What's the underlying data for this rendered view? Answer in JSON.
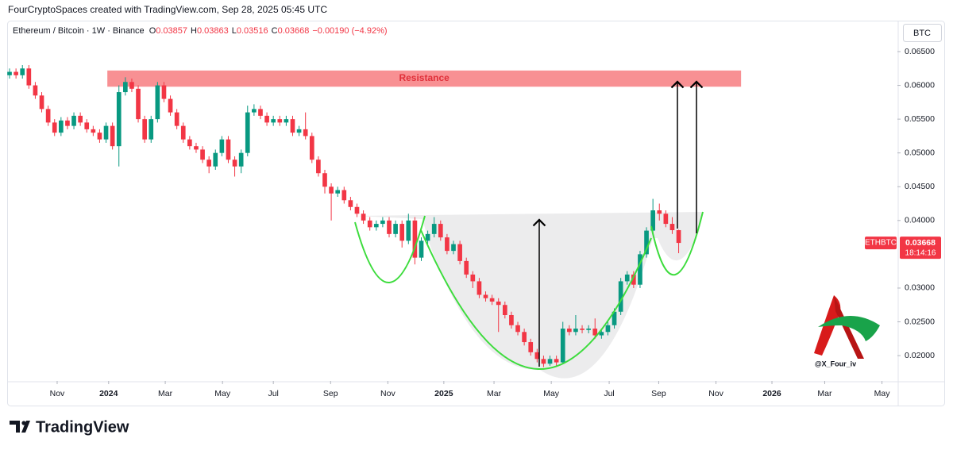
{
  "header": {
    "credit": "FourCryptoSpaces created with TradingView.com, Sep 28, 2025 05:45 UTC",
    "symbol": "Ethereum / Bitcoin · 1W · Binance",
    "ohlc_labels": [
      "O",
      "H",
      "L",
      "C"
    ],
    "change": "−0.00190 (−4.92%)",
    "currency": "BTC",
    "symbol_tag": "ETHBTC",
    "countdown": "18:14:16",
    "watermark": "@X_Four_iv"
  },
  "footer": {
    "brand": "TradingView"
  },
  "chart_data": {
    "type": "candlestick",
    "up_color": "#089981",
    "down_color": "#f23645",
    "grid": false,
    "open": [
      0.0615,
      0.062,
      0.0615,
      0.0625,
      0.06,
      0.0585,
      0.0565,
      0.0545,
      0.053,
      0.0548,
      0.054,
      0.0555,
      0.0545,
      0.0535,
      0.053,
      0.052,
      0.054,
      0.051,
      0.059,
      0.0605,
      0.0595,
      0.055,
      0.052,
      0.055,
      0.06,
      0.058,
      0.056,
      0.054,
      0.052,
      0.051,
      0.0505,
      0.049,
      0.048,
      0.05,
      0.052,
      0.049,
      0.048,
      0.05,
      0.056,
      0.0565,
      0.0555,
      0.0545,
      0.055,
      0.0545,
      0.055,
      0.053,
      0.0535,
      0.0525,
      0.049,
      0.047,
      0.045,
      0.044,
      0.0445,
      0.043,
      0.042,
      0.041,
      0.04,
      0.039,
      0.0395,
      0.04,
      0.038,
      0.0395,
      0.037,
      0.04,
      0.0345,
      0.037,
      0.038,
      0.0395,
      0.0375,
      0.0355,
      0.0365,
      0.034,
      0.032,
      0.031,
      0.029,
      0.0285,
      0.028,
      0.0275,
      0.026,
      0.0245,
      0.0235,
      0.022,
      0.0205,
      0.0195,
      0.0188,
      0.0195,
      0.019,
      0.024,
      0.0235,
      0.024,
      0.0238,
      0.024,
      0.023,
      0.0235,
      0.0245,
      0.0265,
      0.031,
      0.032,
      0.0305,
      0.035,
      0.0385,
      0.0415,
      0.041,
      0.0395,
      0.03857
    ],
    "high": [
      0.0625,
      0.0625,
      0.063,
      0.063,
      0.0605,
      0.059,
      0.057,
      0.055,
      0.0553,
      0.0553,
      0.056,
      0.056,
      0.055,
      0.054,
      0.0535,
      0.0545,
      0.0545,
      0.06,
      0.0612,
      0.061,
      0.06,
      0.0555,
      0.0555,
      0.0605,
      0.0605,
      0.0585,
      0.0565,
      0.0545,
      0.0525,
      0.0515,
      0.051,
      0.0495,
      0.0505,
      0.0525,
      0.0525,
      0.0495,
      0.0505,
      0.057,
      0.0572,
      0.057,
      0.056,
      0.0555,
      0.0555,
      0.0555,
      0.0555,
      0.054,
      0.056,
      0.053,
      0.0495,
      0.0475,
      0.0455,
      0.045,
      0.045,
      0.0435,
      0.0425,
      0.0415,
      0.0405,
      0.04,
      0.0405,
      0.0405,
      0.04,
      0.04,
      0.041,
      0.0405,
      0.0375,
      0.0385,
      0.0405,
      0.04,
      0.038,
      0.037,
      0.037,
      0.0345,
      0.0325,
      0.0315,
      0.0295,
      0.029,
      0.0285,
      0.028,
      0.0265,
      0.025,
      0.024,
      0.0225,
      0.021,
      0.02,
      0.02,
      0.02,
      0.025,
      0.0245,
      0.026,
      0.0245,
      0.0245,
      0.0255,
      0.024,
      0.025,
      0.027,
      0.0315,
      0.0325,
      0.0325,
      0.0355,
      0.039,
      0.0432,
      0.0425,
      0.0415,
      0.0405,
      0.03863
    ],
    "low": [
      0.061,
      0.061,
      0.061,
      0.0595,
      0.058,
      0.056,
      0.054,
      0.0525,
      0.0525,
      0.0535,
      0.0535,
      0.054,
      0.053,
      0.0525,
      0.0515,
      0.0515,
      0.0505,
      0.048,
      0.0585,
      0.059,
      0.0545,
      0.0515,
      0.0515,
      0.0545,
      0.0575,
      0.0555,
      0.0535,
      0.0515,
      0.0505,
      0.05,
      0.0485,
      0.047,
      0.0475,
      0.0495,
      0.0485,
      0.0465,
      0.047,
      0.0495,
      0.0555,
      0.055,
      0.054,
      0.054,
      0.054,
      0.054,
      0.0525,
      0.0525,
      0.052,
      0.0485,
      0.0465,
      0.044,
      0.04,
      0.0435,
      0.0425,
      0.0415,
      0.0405,
      0.0395,
      0.0385,
      0.0385,
      0.039,
      0.0375,
      0.0375,
      0.036,
      0.0365,
      0.0335,
      0.034,
      0.0365,
      0.0375,
      0.037,
      0.035,
      0.035,
      0.0335,
      0.0315,
      0.03,
      0.0285,
      0.028,
      0.0275,
      0.0235,
      0.0255,
      0.024,
      0.023,
      0.0215,
      0.02,
      0.019,
      0.0183,
      0.0185,
      0.0185,
      0.0188,
      0.023,
      0.023,
      0.0233,
      0.0233,
      0.0225,
      0.0225,
      0.023,
      0.024,
      0.026,
      0.0305,
      0.03,
      0.03,
      0.0345,
      0.038,
      0.04,
      0.039,
      0.038,
      0.03516
    ],
    "close": [
      0.062,
      0.0615,
      0.0625,
      0.06,
      0.0585,
      0.0565,
      0.0545,
      0.053,
      0.0548,
      0.054,
      0.0555,
      0.0545,
      0.0535,
      0.053,
      0.052,
      0.054,
      0.051,
      0.059,
      0.0605,
      0.0595,
      0.055,
      0.052,
      0.055,
      0.06,
      0.058,
      0.056,
      0.054,
      0.052,
      0.051,
      0.0505,
      0.049,
      0.048,
      0.05,
      0.052,
      0.049,
      0.048,
      0.05,
      0.056,
      0.0565,
      0.0555,
      0.0545,
      0.055,
      0.0545,
      0.055,
      0.053,
      0.0535,
      0.0525,
      0.049,
      0.047,
      0.045,
      0.044,
      0.0445,
      0.043,
      0.042,
      0.041,
      0.04,
      0.039,
      0.0395,
      0.04,
      0.038,
      0.0395,
      0.037,
      0.04,
      0.0345,
      0.037,
      0.038,
      0.0395,
      0.0375,
      0.0355,
      0.0365,
      0.034,
      0.032,
      0.031,
      0.029,
      0.0285,
      0.028,
      0.0275,
      0.026,
      0.0245,
      0.0235,
      0.022,
      0.0205,
      0.0195,
      0.0188,
      0.0195,
      0.019,
      0.024,
      0.0235,
      0.024,
      0.0238,
      0.024,
      0.023,
      0.0235,
      0.0245,
      0.0265,
      0.031,
      0.032,
      0.0305,
      0.035,
      0.0385,
      0.0415,
      0.041,
      0.0395,
      0.03857,
      0.03668
    ],
    "xlim": [
      -0.25,
      138
    ],
    "xticks": [
      {
        "value": 7.4,
        "label": "Nov"
      },
      {
        "value": 15.4,
        "label": "2024"
      },
      {
        "value": 24.2,
        "label": "Mar"
      },
      {
        "value": 33.1,
        "label": "May"
      },
      {
        "value": 41,
        "label": "Jul"
      },
      {
        "value": 49.9,
        "label": "Sep"
      },
      {
        "value": 58.8,
        "label": "Nov"
      },
      {
        "value": 67.5,
        "label": "2025"
      },
      {
        "value": 75.3,
        "label": "Mar"
      },
      {
        "value": 84.2,
        "label": "May"
      },
      {
        "value": 93.2,
        "label": "Jul"
      },
      {
        "value": 100.9,
        "label": "Sep"
      },
      {
        "value": 109.8,
        "label": "Nov"
      },
      {
        "value": 118.5,
        "label": "2026"
      },
      {
        "value": 126.7,
        "label": "Mar"
      },
      {
        "value": 135.6,
        "label": "May"
      }
    ],
    "ylim": [
      0.01625,
      0.06911
    ],
    "yticks": [
      {
        "value": 0.065,
        "label": "0.06500"
      },
      {
        "value": 0.06,
        "label": "0.06000"
      },
      {
        "value": 0.055,
        "label": "0.05500"
      },
      {
        "value": 0.05,
        "label": "0.05000"
      },
      {
        "value": 0.045,
        "label": "0.04500"
      },
      {
        "value": 0.04,
        "label": "0.04000"
      },
      {
        "value": 0.03,
        "label": "0.03000"
      },
      {
        "value": 0.025,
        "label": "0.02500"
      },
      {
        "value": 0.02,
        "label": "0.02000"
      }
    ],
    "annotations": [
      {
        "label": "Resistance",
        "color": "#f77c80",
        "x": [
          15.2,
          113.7
        ],
        "y": [
          0.0598,
          0.0622
        ]
      }
    ]
  }
}
